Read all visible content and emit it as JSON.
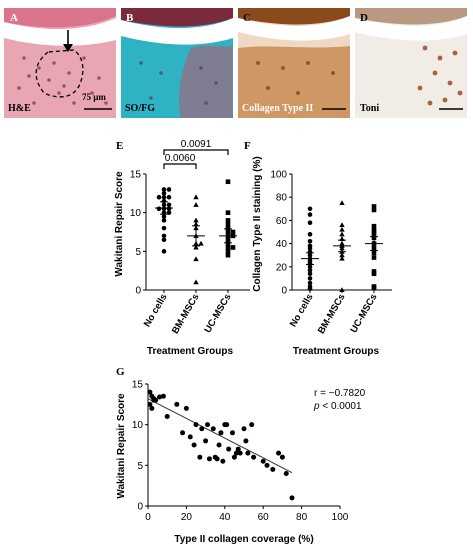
{
  "panels": [
    {
      "letter": "A",
      "caption": "H&E",
      "scale_label": "75 µm"
    },
    {
      "letter": "B",
      "caption": "SO/FG"
    },
    {
      "letter": "C",
      "caption": "Collagen Type II"
    },
    {
      "letter": "D",
      "caption": "Toni"
    }
  ],
  "chart_data": [
    {
      "panel": "E",
      "type": "scatter",
      "ylabel": "Wakitani Repair Score",
      "xlabel": "Treatment Groups",
      "categories": [
        "No cells",
        "BM-MSCs",
        "UC-MSCs"
      ],
      "ylim": [
        0,
        15
      ],
      "yticks": [
        "0",
        "5",
        "10",
        "15"
      ],
      "markers": [
        "circle",
        "triangle",
        "square"
      ],
      "brackets": [
        {
          "from": "No cells",
          "to": "BM-MSCs",
          "label": "0.0060"
        },
        {
          "from": "No cells",
          "to": "UC-MSCs",
          "label": "0.0091"
        }
      ],
      "means": [
        10.6,
        7.0,
        7.0
      ],
      "errors": [
        0.8,
        1.3,
        0.9
      ],
      "series": [
        {
          "values": [
            13,
            13,
            12.5,
            12,
            12,
            12,
            11.5,
            11,
            11,
            10.5,
            10.5,
            10.5,
            10,
            10,
            9.5,
            9,
            8,
            7,
            6.5,
            5
          ]
        },
        {
          "values": [
            12,
            11,
            9,
            8.5,
            8,
            7,
            6,
            6,
            5.5,
            4,
            1
          ]
        },
        {
          "values": [
            14,
            10,
            9,
            8.5,
            8,
            7.5,
            7.5,
            7,
            7,
            6.5,
            6,
            5.5,
            5.5,
            5,
            4.5
          ]
        }
      ]
    },
    {
      "panel": "F",
      "type": "scatter",
      "ylabel": "Collagen Type II staining (%)",
      "xlabel": "Treatment Groups",
      "categories": [
        "No cells",
        "BM-MSCs",
        "UC-MSCs"
      ],
      "ylim": [
        0,
        100
      ],
      "yticks": [
        "0",
        "20",
        "40",
        "60",
        "80",
        "100"
      ],
      "markers": [
        "circle",
        "triangle",
        "square"
      ],
      "means": [
        27,
        38,
        40
      ],
      "errors": [
        5,
        5,
        6
      ],
      "series": [
        {
          "values": [
            70,
            65,
            58,
            48,
            42,
            38,
            36,
            33,
            30,
            27,
            25,
            23,
            20,
            17,
            14,
            10,
            6,
            3,
            1
          ]
        },
        {
          "values": [
            75,
            56,
            52,
            48,
            44,
            40,
            38,
            36,
            33,
            30,
            27,
            0
          ]
        },
        {
          "values": [
            72,
            69,
            55,
            52,
            50,
            48,
            45,
            40,
            36,
            32,
            28,
            16,
            14,
            3,
            2
          ]
        }
      ]
    },
    {
      "panel": "G",
      "type": "scatter",
      "xlabel": "Type II collagen coverage (%)",
      "ylabel": "Wakitani Repair Score",
      "xlim": [
        0,
        100
      ],
      "ylim": [
        0,
        15
      ],
      "xticks": [
        "0",
        "20",
        "40",
        "60",
        "80",
        "100"
      ],
      "yticks": [
        "0",
        "5",
        "10",
        "15"
      ],
      "annotation_r": "r = −0.7820",
      "annotation_p_italic": "p",
      "annotation_p_rest": " < 0.0001",
      "fit_line": {
        "x": [
          0,
          75
        ],
        "y": [
          13.2,
          4.1
        ]
      },
      "points": [
        [
          1,
          14
        ],
        [
          2,
          13.5
        ],
        [
          3,
          13
        ],
        [
          1,
          12.5
        ],
        [
          4,
          13
        ],
        [
          2,
          12
        ],
        [
          3,
          13.2
        ],
        [
          6,
          13.4
        ],
        [
          8,
          13.5
        ],
        [
          10,
          11
        ],
        [
          15,
          12.5
        ],
        [
          18,
          9
        ],
        [
          20,
          12
        ],
        [
          22,
          8.5
        ],
        [
          24,
          7.5
        ],
        [
          25,
          10
        ],
        [
          27,
          6
        ],
        [
          28,
          9.5
        ],
        [
          30,
          8
        ],
        [
          31,
          10
        ],
        [
          32,
          5.8
        ],
        [
          34,
          9.5
        ],
        [
          35,
          6
        ],
        [
          36,
          5.8
        ],
        [
          37,
          7.5
        ],
        [
          38,
          9
        ],
        [
          39,
          5.5
        ],
        [
          40,
          10
        ],
        [
          41,
          10
        ],
        [
          42,
          7
        ],
        [
          44,
          9
        ],
        [
          45,
          6
        ],
        [
          46,
          6.5
        ],
        [
          47,
          7
        ],
        [
          48,
          6.5
        ],
        [
          50,
          9.5
        ],
        [
          51,
          8
        ],
        [
          52,
          6.5
        ],
        [
          54,
          10
        ],
        [
          55,
          6
        ],
        [
          60,
          5.5
        ],
        [
          62,
          5
        ],
        [
          65,
          4.5
        ],
        [
          68,
          6.5
        ],
        [
          70,
          6
        ],
        [
          72,
          4
        ],
        [
          75,
          1
        ]
      ]
    }
  ]
}
